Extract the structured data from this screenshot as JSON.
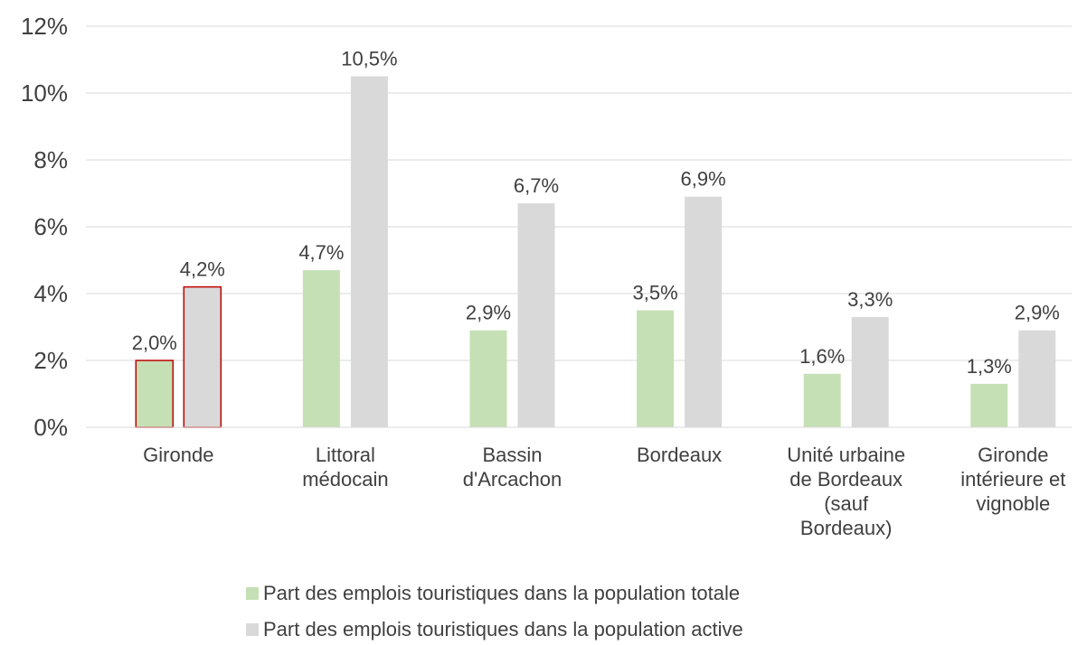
{
  "chart_data": {
    "type": "bar",
    "categories": [
      "Gironde",
      "Littoral médocain",
      "Bassin d'Arcachon",
      "Bordeaux",
      "Unité urbaine de Bordeaux (sauf Bordeaux)",
      "Gironde intérieure et vignoble"
    ],
    "series": [
      {
        "name": "Part des emplois touristiques dans la population totale",
        "color": "#c5e0b4",
        "values": [
          2.0,
          4.7,
          2.9,
          3.5,
          1.6,
          1.3
        ],
        "value_labels": [
          "2,0%",
          "4,7%",
          "2,9%",
          "3,5%",
          "1,6%",
          "1,3%"
        ]
      },
      {
        "name": "Part des emplois touristiques dans la population active",
        "color": "#d9d9d9",
        "values": [
          4.2,
          10.5,
          6.7,
          6.9,
          3.3,
          2.9
        ],
        "value_labels": [
          "4,2%",
          "10,5%",
          "6,7%",
          "6,9%",
          "3,3%",
          "2,9%"
        ]
      }
    ],
    "ylim": [
      0,
      12
    ],
    "yticks": [
      {
        "value": 0,
        "label": "0%"
      },
      {
        "value": 2,
        "label": "2%"
      },
      {
        "value": 4,
        "label": "4%"
      },
      {
        "value": 6,
        "label": "6%"
      },
      {
        "value": 8,
        "label": "8%"
      },
      {
        "value": 10,
        "label": "10%"
      },
      {
        "value": 12,
        "label": "12%"
      }
    ],
    "grid": true,
    "legend": "bottom",
    "highlight_categories": [
      0
    ],
    "highlight_color": "#c00000"
  }
}
